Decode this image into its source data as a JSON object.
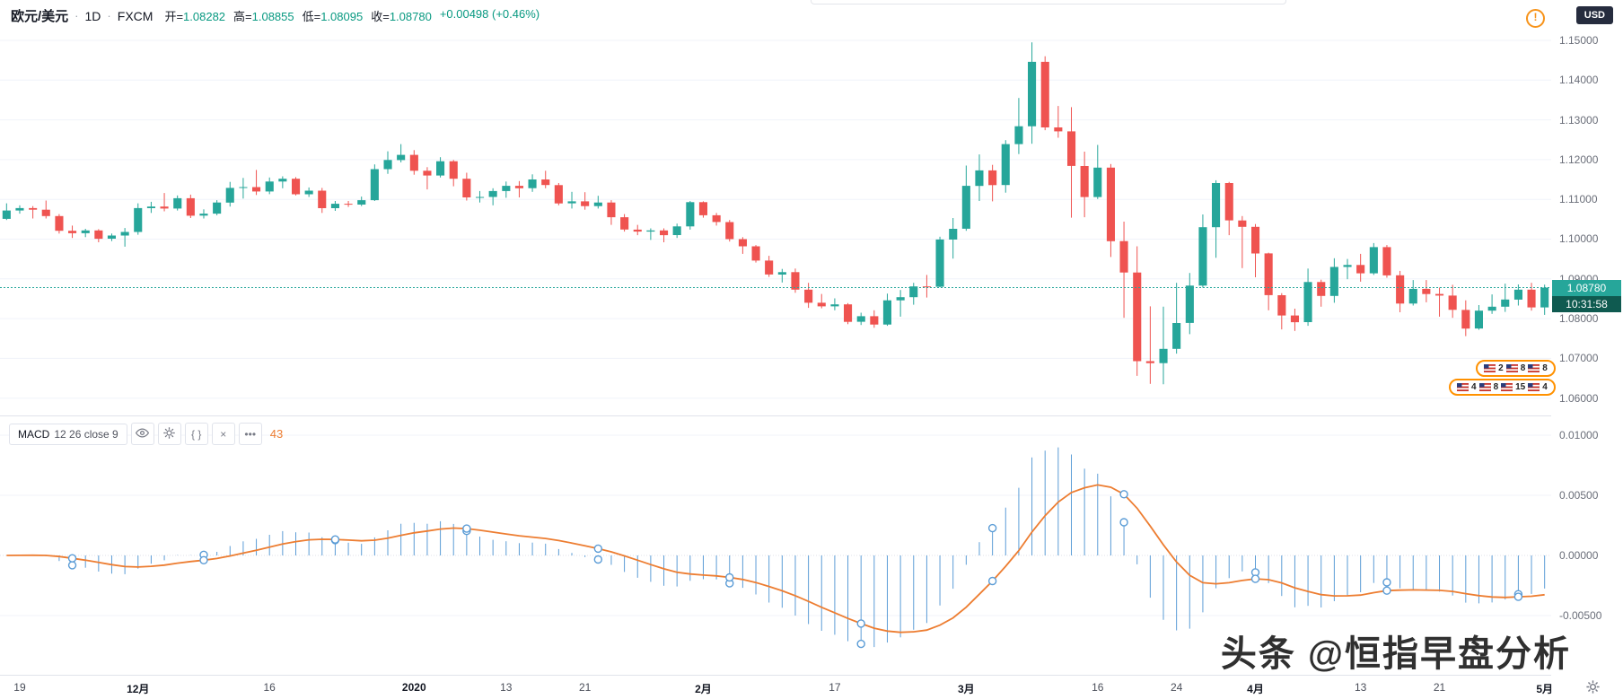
{
  "header": {
    "symbol": "欧元/美元",
    "separator": "·",
    "interval": "1D",
    "exchange": "FXCM",
    "ohlc": [
      {
        "label": "开=",
        "value": "1.08282"
      },
      {
        "label": "高=",
        "value": "1.08855"
      },
      {
        "label": "低=",
        "value": "1.08095"
      },
      {
        "label": "收=",
        "value": "1.08780"
      }
    ],
    "change": "+0.00498 (+0.46%)",
    "up_color": "#089981"
  },
  "icons": {
    "delayed": "!",
    "braces": "{ }",
    "close": "×",
    "more": "•••"
  },
  "price_scale": {
    "currency": "USD",
    "labels": [
      "1.15000",
      "1.14000",
      "1.13000",
      "1.12000",
      "1.11000",
      "1.10000",
      "1.09000",
      "1.08000",
      "1.07000",
      "1.06000"
    ],
    "last_price": "1.08780",
    "last_price_bg": "#26a69a",
    "countdown": "10:31:58",
    "countdown_bg": "#0f5a50"
  },
  "macd_panel": {
    "title": "MACD",
    "params": "12 26 close 9",
    "value_text": "43",
    "scale_labels": [
      {
        "text": "0.01000",
        "value": 0.01
      },
      {
        "text": "0.00500",
        "value": 0.005
      },
      {
        "text": "0.00000",
        "value": 0.0
      },
      {
        "text": "-0.00500",
        "value": -0.005
      }
    ]
  },
  "time_axis": {
    "ticks": [
      {
        "label": "19",
        "bar": 1,
        "major": false
      },
      {
        "label": "12月",
        "bar": 10,
        "major": true
      },
      {
        "label": "16",
        "bar": 20,
        "major": false
      },
      {
        "label": "2020",
        "bar": 31,
        "major": true
      },
      {
        "label": "13",
        "bar": 38,
        "major": false
      },
      {
        "label": "21",
        "bar": 44,
        "major": false
      },
      {
        "label": "2月",
        "bar": 53,
        "major": true
      },
      {
        "label": "17",
        "bar": 63,
        "major": false
      },
      {
        "label": "3月",
        "bar": 73,
        "major": true
      },
      {
        "label": "16",
        "bar": 83,
        "major": false
      },
      {
        "label": "24",
        "bar": 89,
        "major": false
      },
      {
        "label": "4月",
        "bar": 95,
        "major": true
      },
      {
        "label": "13",
        "bar": 103,
        "major": false
      },
      {
        "label": "21",
        "bar": 109,
        "major": false
      },
      {
        "label": "5月",
        "bar": 117,
        "major": true
      }
    ]
  },
  "stickers": {
    "rows": [
      {
        "items": [
          "2",
          "8",
          "8"
        ]
      },
      {
        "items": [
          "4",
          "8",
          "15",
          "4"
        ]
      }
    ]
  },
  "watermark": "头条 @恒指早盘分析",
  "chart_data": {
    "type": "candlestick",
    "title": "欧元/美元 1D FXCM",
    "ylabel": "USD",
    "price_range": [
      1.06,
      1.15
    ],
    "price_grid_step": 0.01,
    "last_price": 1.0878,
    "colors": {
      "up": "#26a69a",
      "down": "#ef5350",
      "macd_line": "#5b9cd6",
      "macd_signal": "#ed7d31"
    },
    "indicator": {
      "name": "MACD",
      "fast": 12,
      "slow": 26,
      "source": "close",
      "signal": 9,
      "visible_range": [
        -0.0085,
        0.0115
      ]
    },
    "candles": [
      [
        1.1051,
        1.109,
        1.1048,
        1.1072
      ],
      [
        1.1072,
        1.1085,
        1.1064,
        1.1078
      ],
      [
        1.1078,
        1.1083,
        1.1052,
        1.1074
      ],
      [
        1.1074,
        1.1097,
        1.1052,
        1.1058
      ],
      [
        1.1058,
        1.1063,
        1.1014,
        1.1021
      ],
      [
        1.1021,
        1.1034,
        1.1003,
        1.1015
      ],
      [
        1.1015,
        1.1026,
        1.1005,
        1.1022
      ],
      [
        1.1022,
        1.1025,
        1.0992,
        1.1001
      ],
      [
        1.1001,
        1.1014,
        1.0995,
        1.1009
      ],
      [
        1.1009,
        1.1028,
        1.0981,
        1.1018
      ],
      [
        1.1018,
        1.109,
        1.1011,
        1.1078
      ],
      [
        1.1078,
        1.1094,
        1.1066,
        1.1082
      ],
      [
        1.1082,
        1.1116,
        1.107,
        1.1077
      ],
      [
        1.1077,
        1.111,
        1.1072,
        1.1103
      ],
      [
        1.1103,
        1.1112,
        1.1053,
        1.1059
      ],
      [
        1.1059,
        1.1075,
        1.1052,
        1.1064
      ],
      [
        1.1064,
        1.1098,
        1.106,
        1.1092
      ],
      [
        1.1092,
        1.1144,
        1.1082,
        1.1129
      ],
      [
        1.1129,
        1.1154,
        1.1102,
        1.1131
      ],
      [
        1.1131,
        1.1174,
        1.1111,
        1.112
      ],
      [
        1.112,
        1.1155,
        1.1113,
        1.1145
      ],
      [
        1.1145,
        1.1158,
        1.1128,
        1.1152
      ],
      [
        1.1152,
        1.1156,
        1.111,
        1.1113
      ],
      [
        1.1113,
        1.113,
        1.1106,
        1.1122
      ],
      [
        1.1122,
        1.1129,
        1.1066,
        1.1078
      ],
      [
        1.1078,
        1.1096,
        1.1071,
        1.1089
      ],
      [
        1.1089,
        1.1096,
        1.1081,
        1.1087
      ],
      [
        1.1087,
        1.1107,
        1.1083,
        1.1098
      ],
      [
        1.1098,
        1.1188,
        1.1096,
        1.1176
      ],
      [
        1.1176,
        1.1221,
        1.1164,
        1.1199
      ],
      [
        1.1199,
        1.1239,
        1.1193,
        1.1212
      ],
      [
        1.1212,
        1.1224,
        1.1162,
        1.1172
      ],
      [
        1.1172,
        1.1181,
        1.1125,
        1.116
      ],
      [
        1.116,
        1.1206,
        1.1155,
        1.1196
      ],
      [
        1.1196,
        1.1199,
        1.1133,
        1.1152
      ],
      [
        1.1152,
        1.1167,
        1.1097,
        1.1105
      ],
      [
        1.1105,
        1.1121,
        1.1092,
        1.1106
      ],
      [
        1.1106,
        1.1128,
        1.1085,
        1.1121
      ],
      [
        1.1121,
        1.1145,
        1.1104,
        1.1134
      ],
      [
        1.1134,
        1.1146,
        1.1105,
        1.1128
      ],
      [
        1.1128,
        1.1163,
        1.1119,
        1.115
      ],
      [
        1.115,
        1.1172,
        1.1128,
        1.1136
      ],
      [
        1.1136,
        1.1141,
        1.1085,
        1.109
      ],
      [
        1.109,
        1.1119,
        1.1077,
        1.1095
      ],
      [
        1.1095,
        1.1118,
        1.1074,
        1.1083
      ],
      [
        1.1083,
        1.1109,
        1.1077,
        1.1092
      ],
      [
        1.1092,
        1.1098,
        1.1036,
        1.1055
      ],
      [
        1.1055,
        1.1063,
        1.1019,
        1.1024
      ],
      [
        1.1024,
        1.1036,
        1.101,
        1.1019
      ],
      [
        1.1019,
        1.1027,
        1.0998,
        1.1022
      ],
      [
        1.1022,
        1.1027,
        1.0992,
        1.101
      ],
      [
        1.101,
        1.1039,
        1.1003,
        1.1032
      ],
      [
        1.1032,
        1.1096,
        1.1024,
        1.1093
      ],
      [
        1.1093,
        1.1095,
        1.1054,
        1.106
      ],
      [
        1.106,
        1.1066,
        1.1034,
        1.1043
      ],
      [
        1.1043,
        1.1048,
        1.0994,
        1.1
      ],
      [
        1.1,
        1.1005,
        1.0963,
        1.0982
      ],
      [
        1.0982,
        1.0985,
        1.0941,
        1.0946
      ],
      [
        1.0946,
        1.0958,
        1.0905,
        1.0911
      ],
      [
        1.0911,
        1.0925,
        1.0891,
        1.0917
      ],
      [
        1.0917,
        1.0926,
        1.0865,
        1.0873
      ],
      [
        1.0873,
        1.089,
        1.0827,
        1.084
      ],
      [
        1.084,
        1.0862,
        1.0826,
        1.0831
      ],
      [
        1.0831,
        1.0851,
        1.0821,
        1.0836
      ],
      [
        1.0836,
        1.0839,
        1.0786,
        1.0792
      ],
      [
        1.0792,
        1.0815,
        1.0784,
        1.0806
      ],
      [
        1.0806,
        1.0821,
        1.0777,
        1.0785
      ],
      [
        1.0785,
        1.0863,
        1.0782,
        1.0846
      ],
      [
        1.0846,
        1.0872,
        1.0805,
        1.0854
      ],
      [
        1.0854,
        1.089,
        1.0835,
        1.0881
      ],
      [
        1.0881,
        1.091,
        1.0853,
        1.088
      ],
      [
        1.088,
        1.1006,
        1.0879,
        1.0999
      ],
      [
        1.0999,
        1.1053,
        1.0951,
        1.1026
      ],
      [
        1.1026,
        1.1185,
        1.1021,
        1.1134
      ],
      [
        1.1134,
        1.1213,
        1.1096,
        1.1173
      ],
      [
        1.1173,
        1.1187,
        1.1095,
        1.1136
      ],
      [
        1.1136,
        1.1249,
        1.1117,
        1.1239
      ],
      [
        1.1239,
        1.1355,
        1.1214,
        1.1284
      ],
      [
        1.1284,
        1.1495,
        1.124,
        1.1446
      ],
      [
        1.1446,
        1.146,
        1.1274,
        1.1281
      ],
      [
        1.1281,
        1.1335,
        1.1255,
        1.1271
      ],
      [
        1.1271,
        1.1332,
        1.1054,
        1.1184
      ],
      [
        1.1184,
        1.122,
        1.1055,
        1.1106
      ],
      [
        1.1106,
        1.1237,
        1.1101,
        1.118
      ],
      [
        1.118,
        1.1189,
        1.0955,
        1.0995
      ],
      [
        1.0995,
        1.1044,
        1.0802,
        1.0916
      ],
      [
        1.0916,
        1.0982,
        1.0656,
        1.0693
      ],
      [
        1.0693,
        1.0831,
        1.0636,
        1.0688
      ],
      [
        1.0688,
        1.083,
        1.0635,
        1.0724
      ],
      [
        1.0724,
        1.089,
        1.0712,
        1.0789
      ],
      [
        1.0789,
        1.0915,
        1.0761,
        1.0883
      ],
      [
        1.0883,
        1.1062,
        1.0878,
        1.103
      ],
      [
        1.103,
        1.1148,
        1.0953,
        1.1141
      ],
      [
        1.1141,
        1.1144,
        1.101,
        1.1047
      ],
      [
        1.1047,
        1.1058,
        1.0927,
        1.1031
      ],
      [
        1.1031,
        1.1038,
        1.0904,
        1.0964
      ],
      [
        1.0964,
        1.0966,
        1.0821,
        1.0859
      ],
      [
        1.0859,
        1.0864,
        1.0773,
        1.0808
      ],
      [
        1.0808,
        1.0825,
        1.0769,
        1.0791
      ],
      [
        1.0791,
        1.0926,
        1.0782,
        1.0892
      ],
      [
        1.0892,
        1.0898,
        1.083,
        1.0857
      ],
      [
        1.0857,
        1.0952,
        1.084,
        1.093
      ],
      [
        1.093,
        1.095,
        1.0899,
        1.0935
      ],
      [
        1.0935,
        1.0963,
        1.0893,
        1.0914
      ],
      [
        1.0914,
        1.099,
        1.091,
        1.098
      ],
      [
        1.098,
        1.0985,
        1.0903,
        1.0909
      ],
      [
        1.0909,
        1.092,
        1.0816,
        1.0838
      ],
      [
        1.0838,
        1.0897,
        1.0833,
        1.0875
      ],
      [
        1.0875,
        1.0897,
        1.0841,
        1.0862
      ],
      [
        1.0862,
        1.0878,
        1.0805,
        1.0858
      ],
      [
        1.0858,
        1.0885,
        1.0802,
        1.0822
      ],
      [
        1.0822,
        1.0846,
        1.0756,
        1.0775
      ],
      [
        1.0775,
        1.0834,
        1.0772,
        1.082
      ],
      [
        1.082,
        1.0861,
        1.0812,
        1.083
      ],
      [
        1.083,
        1.0888,
        1.0817,
        1.0848
      ],
      [
        1.0848,
        1.0886,
        1.0833,
        1.0873
      ],
      [
        1.0873,
        1.089,
        1.082,
        1.08282
      ],
      [
        1.08282,
        1.08855,
        1.08095,
        1.0878
      ]
    ]
  }
}
